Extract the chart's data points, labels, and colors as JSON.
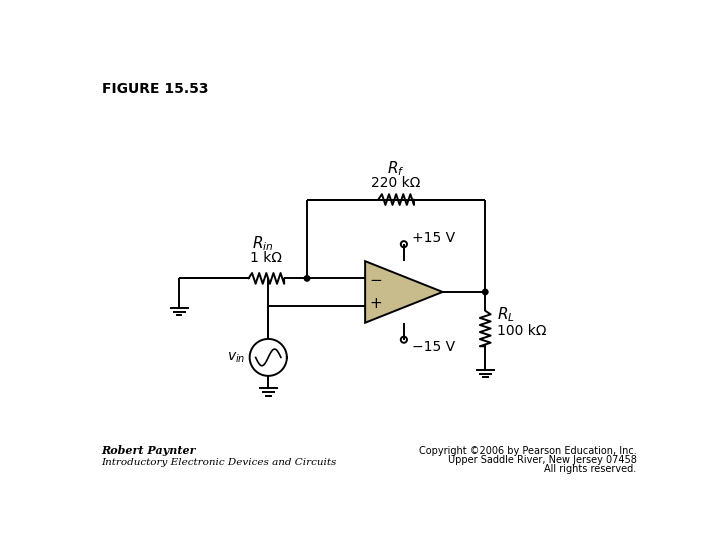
{
  "title": "FIGURE 15.53",
  "bg_color": "#ffffff",
  "line_color": "#000000",
  "component_color": "#c8bc8c",
  "dot_color": "#000000",
  "text_color": "#000000",
  "footer_left_line1": "Robert Paynter",
  "footer_left_line2": "Introductory Electronic Devices and Circuits",
  "footer_right_line1": "Copyright ©2006 by Pearson Education, Inc.",
  "footer_right_line2": "Upper Saddle River, New Jersey 07458",
  "footer_right_line3": "All rights reserved.",
  "Rf_label": "$R_f$",
  "Rf_value": "220 kΩ",
  "Rin_label": "$R_{in}$",
  "Rin_value": "1 kΩ",
  "RL_label": "$R_L$",
  "RL_value": "100 kΩ",
  "Vpos": "+15 V",
  "Vneg": "−15 V",
  "vin_label": "$v_{in}$",
  "minus_label": "−",
  "plus_label": "+"
}
